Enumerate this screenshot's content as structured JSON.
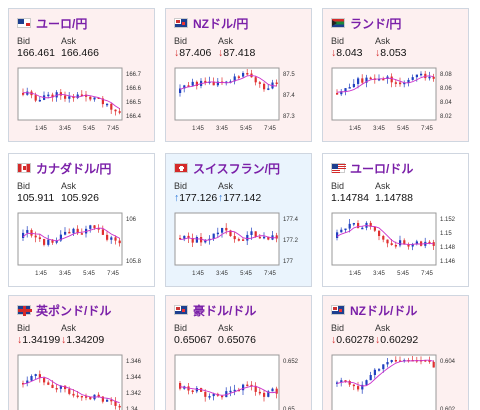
{
  "labels": {
    "bid": "Bid",
    "ask": "Ask"
  },
  "cards": [
    {
      "pair": "ユーロ/円",
      "bid": "166.461",
      "ask": "166.466",
      "dir": "",
      "bg": "pinkish",
      "flag": "eu",
      "yticks": [
        "166.7",
        "166.6",
        "166.5",
        "166.4"
      ],
      "xticks": [
        "1:45",
        "3:45",
        "5:45",
        "7:45"
      ]
    },
    {
      "pair": "NZドル/円",
      "bid": "87.406",
      "ask": "87.418",
      "dir": "down",
      "bg": "pinkish",
      "flag": "nz",
      "yticks": [
        "87.5",
        "87.4",
        "87.3"
      ],
      "xticks": [
        "1:45",
        "3:45",
        "5:45",
        "7:45"
      ]
    },
    {
      "pair": "ランド/円",
      "bid": "8.043",
      "ask": "8.053",
      "dir": "down",
      "bg": "pinkish",
      "flag": "za",
      "yticks": [
        "8.08",
        "8.06",
        "8.04",
        "8.02"
      ],
      "xticks": [
        "1:45",
        "3:45",
        "5:45",
        "7:45"
      ]
    },
    {
      "pair": "カナダドル/円",
      "bid": "105.911",
      "ask": "105.926",
      "dir": "",
      "bg": "neutral",
      "flag": "ca",
      "yticks": [
        "106",
        "105.8"
      ],
      "xticks": [
        "1:45",
        "3:45",
        "5:45",
        "7:45"
      ]
    },
    {
      "pair": "スイスフラン/円",
      "bid": "177.126",
      "ask": "177.142",
      "dir": "up",
      "bg": "blueish",
      "flag": "ch",
      "yticks": [
        "177.4",
        "177.2",
        "177"
      ],
      "xticks": [
        "1:45",
        "3:45",
        "5:45",
        "7:45"
      ]
    },
    {
      "pair": "ユーロ/ドル",
      "bid": "1.14784",
      "ask": "1.14788",
      "dir": "",
      "bg": "neutral",
      "flag": "eu-us",
      "yticks": [
        "1.152",
        "1.15",
        "1.148",
        "1.146"
      ],
      "xticks": [
        "1:45",
        "3:45",
        "5:45",
        "7:45"
      ]
    },
    {
      "pair": "英ポンド/ドル",
      "bid": "1.34199",
      "ask": "1.34209",
      "dir": "down",
      "bg": "pinkish",
      "flag": "uk",
      "yticks": [
        "1.346",
        "1.344",
        "1.342",
        "1.34"
      ],
      "xticks": []
    },
    {
      "pair": "豪ドル/ドル",
      "bid": "0.65067",
      "ask": "0.65076",
      "dir": "",
      "bg": "pinkish",
      "flag": "au",
      "yticks": [
        "0.652",
        "0.65"
      ],
      "xticks": []
    },
    {
      "pair": "NZドル/ドル",
      "bid": "0.60278",
      "ask": "0.60292",
      "dir": "down",
      "bg": "pinkish",
      "flag": "nz",
      "yticks": [
        "0.604",
        "0.602"
      ],
      "xticks": []
    }
  ],
  "colors": {
    "up": "#1f6fd6",
    "down": "#d42a2a",
    "ma": "#cc33cc",
    "candleUp": "#2040c0",
    "candleDown": "#e03030"
  }
}
